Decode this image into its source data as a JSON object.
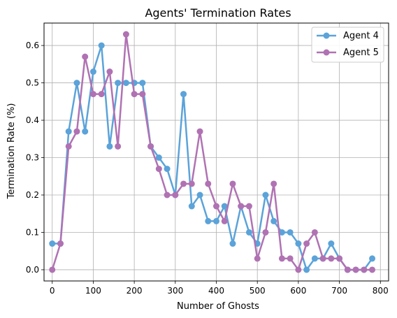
{
  "chart_data": {
    "type": "line",
    "title": "Agents' Termination Rates",
    "xlabel": "Number of Ghosts",
    "ylabel": "Termination Rate (%)",
    "xlim": [
      -20,
      820
    ],
    "ylim": [
      -0.03,
      0.66
    ],
    "xticks": [
      0,
      100,
      200,
      300,
      400,
      500,
      600,
      700,
      800
    ],
    "xtick_labels": [
      "0",
      "100",
      "200",
      "300",
      "400",
      "500",
      "600",
      "700",
      "800"
    ],
    "yticks": [
      0.0,
      0.1,
      0.2,
      0.3,
      0.4,
      0.5,
      0.6
    ],
    "ytick_labels": [
      "0.0",
      "0.1",
      "0.2",
      "0.3",
      "0.4",
      "0.5",
      "0.6"
    ],
    "grid": true,
    "legend_position": "top-right",
    "x": [
      0,
      20,
      40,
      60,
      80,
      100,
      120,
      140,
      160,
      180,
      200,
      220,
      240,
      260,
      280,
      300,
      320,
      340,
      360,
      380,
      400,
      420,
      440,
      460,
      480,
      500,
      520,
      540,
      560,
      580,
      600,
      620,
      640,
      660,
      680,
      700,
      720,
      740,
      760,
      780
    ],
    "series": [
      {
        "name": "Agent 4",
        "color": "#5ba3d9",
        "values": [
          0.07,
          0.07,
          0.37,
          0.5,
          0.37,
          0.53,
          0.6,
          0.33,
          0.5,
          0.5,
          0.5,
          0.5,
          0.33,
          0.3,
          0.27,
          0.2,
          0.47,
          0.17,
          0.2,
          0.13,
          0.13,
          0.17,
          0.07,
          0.17,
          0.1,
          0.07,
          0.2,
          0.13,
          0.1,
          0.1,
          0.07,
          0.0,
          0.03,
          0.03,
          0.07,
          0.03,
          0.0,
          0.0,
          0.0,
          0.03
        ]
      },
      {
        "name": "Agent 5",
        "color": "#b072b3",
        "values": [
          0.0,
          0.07,
          0.33,
          0.37,
          0.57,
          0.47,
          0.47,
          0.53,
          0.33,
          0.63,
          0.47,
          0.47,
          0.33,
          0.27,
          0.2,
          0.2,
          0.23,
          0.23,
          0.37,
          0.23,
          0.17,
          0.13,
          0.23,
          0.17,
          0.17,
          0.03,
          0.1,
          0.23,
          0.03,
          0.03,
          0.0,
          0.07,
          0.1,
          0.03,
          0.03,
          0.03,
          0.0,
          0.0,
          0.0,
          0.0
        ]
      }
    ]
  }
}
